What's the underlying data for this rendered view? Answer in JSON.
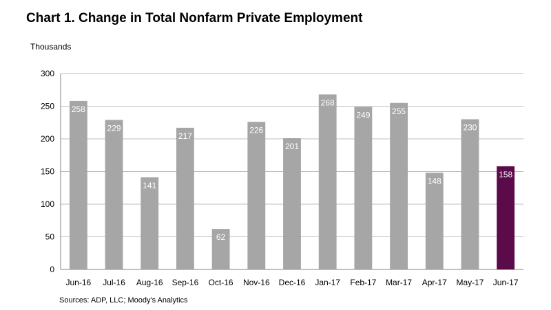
{
  "chart_data": {
    "type": "bar",
    "title": "Chart 1. Change in Total Nonfarm Private Employment",
    "ylabel": "Thousands",
    "xlabel": "",
    "source": "Sources: ADP, LLC; Moody's Analytics",
    "categories": [
      "Jun-16",
      "Jul-16",
      "Aug-16",
      "Sep-16",
      "Oct-16",
      "Nov-16",
      "Dec-16",
      "Jan-17",
      "Feb-17",
      "Mar-17",
      "Apr-17",
      "May-17",
      "Jun-17"
    ],
    "values": [
      258,
      229,
      141,
      217,
      62,
      226,
      201,
      268,
      249,
      255,
      148,
      230,
      158
    ],
    "ylim": [
      0,
      300
    ],
    "yticks": [
      0,
      50,
      100,
      150,
      200,
      250,
      300
    ],
    "grid": true,
    "legend": "none",
    "colors": {
      "bar": "#a6a6a6",
      "highlight": "#5b0a4a",
      "grid": "#bfbfbf",
      "axis": "#808080",
      "data_label": "#ffffff"
    },
    "highlight_category": "Jun-17"
  }
}
